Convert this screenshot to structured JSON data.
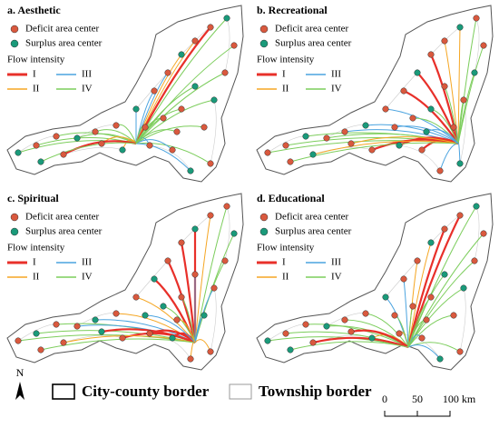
{
  "panels": [
    {
      "title": "a. Aesthetic",
      "deficit": "Deficit area center",
      "surplus": "Surplus area center",
      "flow_title": "Flow intensity",
      "levels": [
        "I",
        "II",
        "III",
        "IV"
      ]
    },
    {
      "title": "b. Recreational",
      "deficit": "Deficit area center",
      "surplus": "Surplus area center",
      "flow_title": "Flow intensity",
      "levels": [
        "I",
        "II",
        "III",
        "IV"
      ]
    },
    {
      "title": "c. Spiritual",
      "deficit": "Deficit area center",
      "surplus": "Surplus area center",
      "flow_title": "Flow intensity",
      "levels": [
        "I",
        "II",
        "III",
        "IV"
      ]
    },
    {
      "title": "d. Educational",
      "deficit": "Deficit area center",
      "surplus": "Surplus area center",
      "flow_title": "Flow intensity",
      "levels": [
        "I",
        "II",
        "III",
        "IV"
      ]
    }
  ],
  "bottom_legend": {
    "north": "N",
    "city_county": "City-county border",
    "township": "Township border",
    "scale": [
      "0",
      "50",
      "100 km"
    ]
  }
}
